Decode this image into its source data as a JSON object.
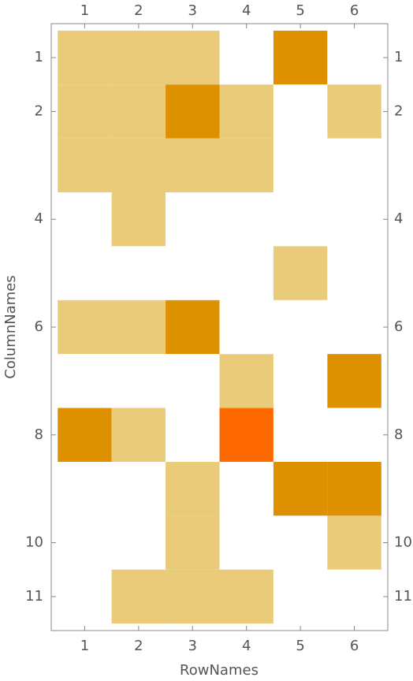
{
  "chart_data": {
    "type": "heatmap",
    "x_label": "RowNames",
    "y_label": "ColumnNames",
    "matrix": [
      [
        1,
        1,
        1,
        0,
        2,
        0
      ],
      [
        1,
        1,
        2,
        1,
        0,
        1
      ],
      [
        1,
        1,
        1,
        1,
        0,
        0
      ],
      [
        0,
        1,
        0,
        0,
        0,
        0
      ],
      [
        0,
        0,
        0,
        0,
        1,
        0
      ],
      [
        1,
        1,
        2,
        0,
        0,
        0
      ],
      [
        0,
        0,
        0,
        1,
        0,
        2
      ],
      [
        2,
        1,
        0,
        3,
        0,
        0
      ],
      [
        0,
        0,
        1,
        0,
        2,
        2
      ],
      [
        0,
        0,
        1,
        0,
        0,
        1
      ],
      [
        0,
        1,
        1,
        1,
        0,
        0
      ]
    ],
    "colorscale": [
      "#ffffff",
      "#e9cb7a",
      "#dd9000",
      "#ff6a00"
    ],
    "xlim": [
      0.38,
      6.62
    ],
    "ylim": [
      0.37,
      11.63
    ],
    "xticks": [
      1,
      2,
      3,
      4,
      5,
      6
    ],
    "yticks": [
      1,
      2,
      4,
      6,
      8,
      10,
      11
    ]
  }
}
